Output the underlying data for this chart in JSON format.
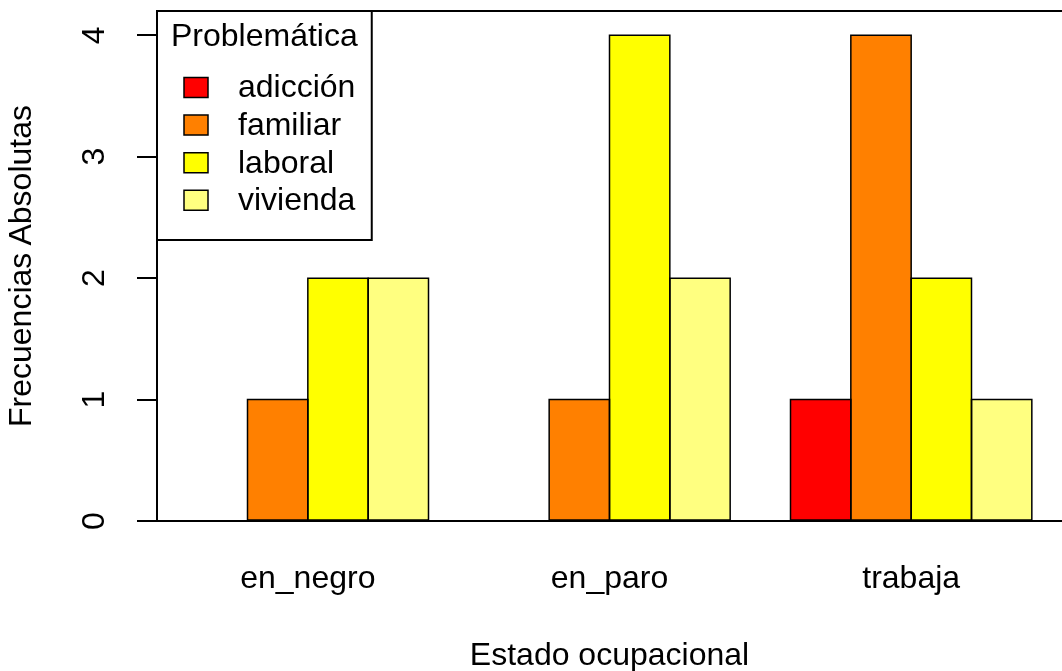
{
  "chart_data": {
    "type": "bar",
    "xlabel": "Estado ocupacional",
    "ylabel": "Frecuencias Absolutas",
    "legend_title": "Problemática",
    "categories": [
      "en_negro",
      "en_paro",
      "trabaja"
    ],
    "series": [
      {
        "name": "adicción",
        "color": "#ff0000",
        "values": [
          0,
          0,
          1
        ]
      },
      {
        "name": "familiar",
        "color": "#ff8000",
        "values": [
          1,
          1,
          4
        ]
      },
      {
        "name": "laboral",
        "color": "#ffff00",
        "values": [
          2,
          4,
          2
        ]
      },
      {
        "name": "vivienda",
        "color": "#ffff80",
        "values": [
          2,
          2,
          1
        ]
      }
    ],
    "ylim": [
      0,
      4.2
    ],
    "yticks": [
      0,
      1,
      2,
      3,
      4
    ],
    "legend": "top left"
  }
}
